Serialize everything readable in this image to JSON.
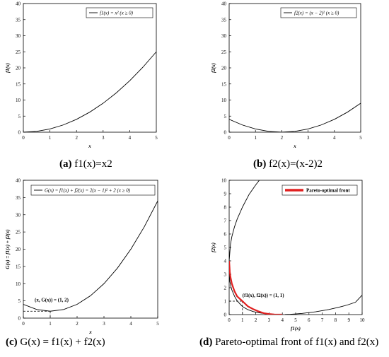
{
  "chart_data": [
    {
      "id": "a",
      "type": "line",
      "caption_letter": "(a)",
      "caption_text": "f1(x)=x2",
      "legend": "f1(x) = x² (x ≥ 0)",
      "xlabel": "x",
      "ylabel": "f1(x)",
      "xlim": [
        0,
        5
      ],
      "ylim": [
        0,
        40
      ],
      "xticks": [
        0,
        1,
        2,
        3,
        4,
        5
      ],
      "yticks": [
        0,
        5,
        10,
        15,
        20,
        25,
        30,
        35,
        40
      ],
      "series": [
        {
          "x": [
            0,
            0.5,
            1,
            1.5,
            2,
            2.5,
            3,
            3.5,
            4,
            4.5,
            5
          ],
          "y": [
            0,
            0.25,
            1,
            2.25,
            4,
            6.25,
            9,
            12.25,
            16,
            20.25,
            25
          ],
          "color": "#000000"
        }
      ]
    },
    {
      "id": "b",
      "type": "line",
      "caption_letter": "(b)",
      "caption_text": "f2(x)=(x-2)2",
      "legend": "f2(x) = (x − 2)² (x ≥ 0)",
      "xlabel": "x",
      "ylabel": "f2(x)",
      "xlim": [
        0,
        5
      ],
      "ylim": [
        0,
        40
      ],
      "xticks": [
        0,
        1,
        2,
        3,
        4,
        5
      ],
      "yticks": [
        0,
        5,
        10,
        15,
        20,
        25,
        30,
        35,
        40
      ],
      "series": [
        {
          "x": [
            0,
            0.5,
            1,
            1.5,
            2,
            2.5,
            3,
            3.5,
            4,
            4.5,
            5
          ],
          "y": [
            4,
            2.25,
            1,
            0.25,
            0,
            0.25,
            1,
            2.25,
            4,
            6.25,
            9
          ],
          "color": "#000000"
        }
      ]
    },
    {
      "id": "c",
      "type": "line",
      "caption_letter": "(c)",
      "caption_text": "G(x) = f1(x) + f2(x)",
      "legend": "G(x) = f1(x) + f2(x) = 2(x − 1)² + 2 (x ≥ 0)",
      "xlabel": "x",
      "ylabel": "G(x) = f1(x) + f2(x)",
      "xlim": [
        0,
        5
      ],
      "ylim": [
        0,
        40
      ],
      "xticks": [
        0,
        1,
        2,
        3,
        4,
        5
      ],
      "yticks": [
        0,
        5,
        10,
        15,
        20,
        25,
        30,
        35,
        40
      ],
      "annotation": "(x, G(x)) = (1, 2)",
      "annotation_point": [
        1,
        2
      ],
      "series": [
        {
          "x": [
            0,
            0.5,
            1,
            1.5,
            2,
            2.5,
            3,
            3.5,
            4,
            4.5,
            5
          ],
          "y": [
            4,
            2.5,
            2,
            2.5,
            4,
            6.5,
            10,
            14.5,
            20,
            26.5,
            34
          ],
          "color": "#000000"
        }
      ]
    },
    {
      "id": "d",
      "type": "line",
      "caption_letter": "(d)",
      "caption_text": "Pareto-optimal front of f1(x) and f2(x)",
      "legend": "Pareto-optimal front",
      "xlabel": "f1(x)",
      "ylabel": "f2(x)",
      "xlim": [
        0,
        10
      ],
      "ylim": [
        0,
        10
      ],
      "xticks": [
        0,
        1,
        2,
        3,
        4,
        5,
        6,
        7,
        8,
        9,
        10
      ],
      "yticks": [
        0,
        1,
        2,
        3,
        4,
        5,
        6,
        7,
        8,
        9,
        10
      ],
      "annotation": "(f1(x), f2(x)) = (1, 1)",
      "annotation_point": [
        1,
        1
      ],
      "series": [
        {
          "x": [
            4,
            3.4,
            3,
            2.6,
            2.2,
            1.8,
            1.4,
            1,
            0.6,
            0.4,
            0.2,
            0.1,
            0.05,
            0
          ],
          "y": [
            0,
            0.01,
            0.04,
            0.08,
            0.14,
            0.23,
            0.37,
            0.6,
            1.02,
            1.37,
            1.84,
            2.22,
            2.47,
            4
          ],
          "color": "#000000"
        },
        {
          "x": [
            4.2,
            4.6,
            5,
            5.5,
            6,
            6.5,
            7,
            7.5,
            8,
            8.5,
            9,
            9.5,
            10
          ],
          "y": [
            0.01,
            0.02,
            0.05,
            0.09,
            0.15,
            0.21,
            0.29,
            0.38,
            0.49,
            0.61,
            0.75,
            0.92,
            1.45
          ],
          "color": "#000000"
        },
        {
          "x": [
            0,
            0.1,
            0.2,
            0.4,
            0.6,
            1,
            1.5,
            2,
            2.5,
            2.9
          ],
          "y": [
            4,
            5.23,
            5.79,
            6.53,
            7.1,
            8,
            8.95,
            9.66,
            10.3,
            10.8
          ],
          "color": "#000000"
        },
        {
          "name": "Pareto-optimal front",
          "x": [
            0,
            0.05,
            0.1,
            0.2,
            0.4,
            0.6,
            1,
            1.4,
            1.8,
            2.2,
            2.6,
            3,
            3.4,
            4
          ],
          "y": [
            4,
            3.16,
            2.79,
            2.31,
            1.74,
            1.36,
            1,
            0.62,
            0.41,
            0.24,
            0.11,
            0.04,
            0.01,
            0
          ],
          "color": "#e02020"
        }
      ]
    }
  ]
}
